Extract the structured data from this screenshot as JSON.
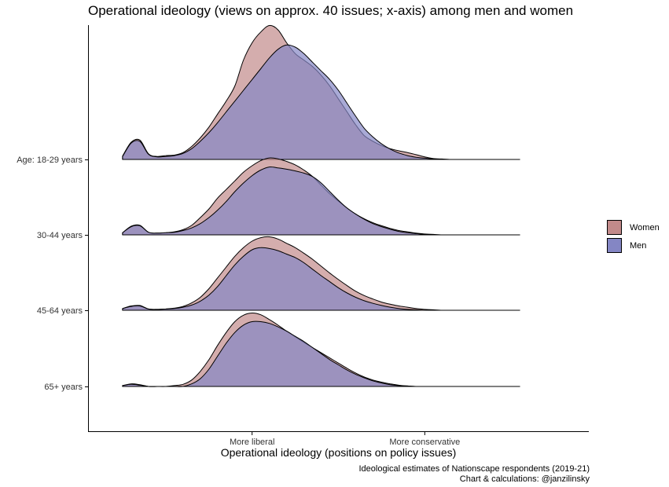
{
  "chart_data": {
    "type": "ridgeline-density",
    "title": "Operational ideology (views on approx. 40 issues; x-axis) among men and women",
    "xlabel": "Operational ideology (positions on policy issues)",
    "caption": [
      "Ideological estimates of Nationscape respondents (2019-21)",
      "Chart & calculations: @janzilinsky"
    ],
    "x_ticks": [
      "More liberal",
      "More conservative"
    ],
    "x_tick_values": [
      0.3,
      0.7
    ],
    "xlim": [
      -0.08,
      1.08
    ],
    "legend": {
      "position": "right",
      "entries": [
        {
          "name": "Women",
          "color": "#c28a8a"
        },
        {
          "name": "Men",
          "color": "#8486c4"
        }
      ]
    },
    "categories": [
      "Age: 18-29 years",
      "30-44 years",
      "45-64 years",
      "65+ years"
    ],
    "x": [
      0.0,
      0.02,
      0.04,
      0.06,
      0.08,
      0.1,
      0.12,
      0.14,
      0.16,
      0.18,
      0.2,
      0.22,
      0.24,
      0.26,
      0.28,
      0.3,
      0.32,
      0.34,
      0.36,
      0.38,
      0.4,
      0.42,
      0.44,
      0.46,
      0.48,
      0.5,
      0.52,
      0.54,
      0.56,
      0.58,
      0.6,
      0.62,
      0.64,
      0.66,
      0.68,
      0.7,
      0.72,
      0.74,
      0.76,
      0.78,
      0.8,
      0.82,
      0.84,
      0.86,
      0.88,
      0.9,
      0.92
    ],
    "series": [
      {
        "name": "Women",
        "groups": [
          {
            "label": "Age: 18-29 years",
            "values": [
              0.08,
              0.4,
              0.45,
              0.13,
              0.07,
              0.09,
              0.1,
              0.16,
              0.3,
              0.5,
              0.75,
              1.05,
              1.35,
              1.7,
              2.3,
              2.7,
              2.95,
              3.1,
              3.0,
              2.7,
              2.45,
              2.3,
              2.15,
              1.95,
              1.7,
              1.4,
              1.1,
              0.8,
              0.55,
              0.42,
              0.32,
              0.25,
              0.2,
              0.16,
              0.11,
              0.06,
              0.02,
              0.01,
              0.0,
              0.0,
              0.0,
              0.0,
              0.0,
              0.0,
              0.0,
              0.0,
              0.0
            ]
          },
          {
            "label": "30-44 years",
            "values": [
              0.05,
              0.2,
              0.22,
              0.06,
              0.04,
              0.05,
              0.07,
              0.12,
              0.22,
              0.4,
              0.6,
              0.85,
              1.05,
              1.25,
              1.45,
              1.6,
              1.72,
              1.78,
              1.76,
              1.7,
              1.62,
              1.5,
              1.35,
              1.15,
              0.95,
              0.78,
              0.62,
              0.48,
              0.37,
              0.28,
              0.21,
              0.15,
              0.1,
              0.07,
              0.04,
              0.02,
              0.01,
              0.0,
              0.0,
              0.0,
              0.0,
              0.0,
              0.0,
              0.0,
              0.0,
              0.0,
              0.0
            ]
          },
          {
            "label": "45-64 years",
            "values": [
              0.04,
              0.1,
              0.11,
              0.03,
              0.02,
              0.03,
              0.05,
              0.09,
              0.17,
              0.3,
              0.5,
              0.75,
              1.0,
              1.25,
              1.45,
              1.6,
              1.68,
              1.7,
              1.65,
              1.55,
              1.45,
              1.32,
              1.18,
              1.02,
              0.86,
              0.71,
              0.57,
              0.44,
              0.34,
              0.26,
              0.19,
              0.14,
              0.1,
              0.07,
              0.04,
              0.02,
              0.01,
              0.0,
              0.0,
              0.0,
              0.0,
              0.0,
              0.0,
              0.0,
              0.0,
              0.0,
              0.0
            ]
          },
          {
            "label": "65+ years",
            "values": [
              0.02,
              0.06,
              0.04,
              0.0,
              0.0,
              0.0,
              0.02,
              0.05,
              0.15,
              0.35,
              0.62,
              0.95,
              1.25,
              1.5,
              1.65,
              1.7,
              1.66,
              1.55,
              1.42,
              1.28,
              1.15,
              1.02,
              0.9,
              0.78,
              0.66,
              0.54,
              0.42,
              0.31,
              0.22,
              0.15,
              0.1,
              0.06,
              0.03,
              0.01,
              0.0,
              0.0,
              0.0,
              0.0,
              0.0,
              0.0,
              0.0,
              0.0,
              0.0,
              0.0,
              0.0,
              0.0,
              0.0
            ]
          }
        ]
      },
      {
        "name": "Men",
        "groups": [
          {
            "label": "Age: 18-29 years",
            "values": [
              0.07,
              0.38,
              0.42,
              0.12,
              0.06,
              0.07,
              0.09,
              0.14,
              0.25,
              0.42,
              0.62,
              0.85,
              1.1,
              1.35,
              1.6,
              1.85,
              2.1,
              2.35,
              2.55,
              2.65,
              2.6,
              2.45,
              2.25,
              2.05,
              1.85,
              1.6,
              1.3,
              1.0,
              0.72,
              0.52,
              0.36,
              0.24,
              0.15,
              0.09,
              0.05,
              0.03,
              0.01,
              0.0,
              0.0,
              0.0,
              0.0,
              0.0,
              0.0,
              0.0,
              0.0,
              0.0,
              0.0
            ]
          },
          {
            "label": "30-44 years",
            "values": [
              0.05,
              0.19,
              0.21,
              0.06,
              0.04,
              0.05,
              0.06,
              0.1,
              0.16,
              0.26,
              0.4,
              0.57,
              0.77,
              1.0,
              1.2,
              1.37,
              1.5,
              1.57,
              1.55,
              1.52,
              1.48,
              1.43,
              1.35,
              1.2,
              1.0,
              0.8,
              0.62,
              0.48,
              0.36,
              0.26,
              0.19,
              0.13,
              0.08,
              0.05,
              0.03,
              0.01,
              0.0,
              0.0,
              0.0,
              0.0,
              0.0,
              0.0,
              0.0,
              0.0,
              0.0,
              0.0,
              0.0
            ]
          },
          {
            "label": "45-64 years",
            "values": [
              0.04,
              0.09,
              0.1,
              0.03,
              0.02,
              0.03,
              0.04,
              0.07,
              0.12,
              0.21,
              0.35,
              0.55,
              0.8,
              1.05,
              1.25,
              1.4,
              1.45,
              1.43,
              1.38,
              1.3,
              1.22,
              1.1,
              0.95,
              0.8,
              0.66,
              0.52,
              0.4,
              0.3,
              0.22,
              0.16,
              0.11,
              0.07,
              0.04,
              0.02,
              0.01,
              0.0,
              0.0,
              0.0,
              0.0,
              0.0,
              0.0,
              0.0,
              0.0,
              0.0,
              0.0,
              0.0,
              0.0
            ]
          },
          {
            "label": "65+ years",
            "values": [
              0.02,
              0.05,
              0.03,
              0.0,
              0.0,
              0.0,
              0.0,
              0.0,
              0.06,
              0.18,
              0.4,
              0.7,
              1.0,
              1.25,
              1.42,
              1.5,
              1.5,
              1.46,
              1.38,
              1.28,
              1.16,
              1.04,
              0.9,
              0.76,
              0.62,
              0.5,
              0.38,
              0.28,
              0.2,
              0.13,
              0.08,
              0.04,
              0.02,
              0.01,
              0.0,
              0.0,
              0.0,
              0.0,
              0.0,
              0.0,
              0.0,
              0.0,
              0.0,
              0.0,
              0.0,
              0.0,
              0.0
            ]
          }
        ]
      }
    ]
  }
}
